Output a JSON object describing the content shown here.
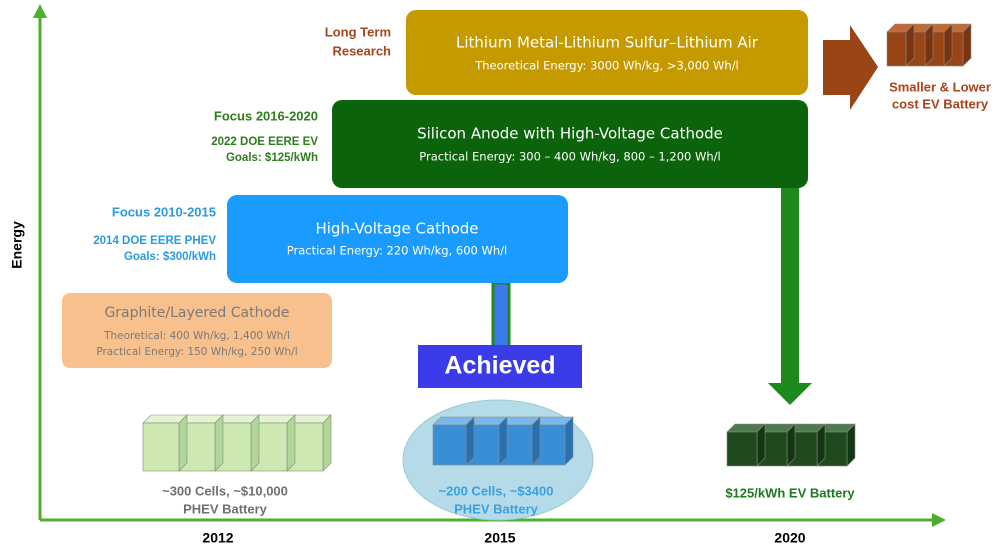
{
  "axis": {
    "y_label": "Energy",
    "x_labels": [
      "2012",
      "2015",
      "2020"
    ]
  },
  "boxes": [
    {
      "title": "Lithium Metal-Lithium Sulfur–Lithium Air",
      "lines": [
        "Theoretical Energy: 3000 Wh/kg, >3,000 Wh/l"
      ],
      "focus": [
        "Long Term",
        "Research"
      ]
    },
    {
      "title": "Silicon Anode with High-Voltage Cathode",
      "lines": [
        "Practical Energy: 300 – 400 Wh/kg, 800 – 1,200 Wh/l"
      ],
      "focus": [
        "Focus 2016-2020"
      ],
      "goals": [
        "2022 DOE EERE EV",
        "Goals: $125/kWh"
      ]
    },
    {
      "title": "High-Voltage Cathode",
      "lines": [
        "Practical Energy: 220 Wh/kg, 600 Wh/l"
      ],
      "focus": [
        "Focus 2010-2015"
      ],
      "goals": [
        "2014 DOE EERE PHEV",
        "Goals: $300/kWh"
      ]
    },
    {
      "title": "Graphite/Layered Cathode",
      "lines": [
        "Theoretical: 400 Wh/kg, 1,400 Wh/l",
        "Practical Energy: 150 Wh/kg, 250 Wh/l"
      ]
    }
  ],
  "badge": "Achieved",
  "batteries": [
    {
      "lines": [
        "~300 Cells, ~$10,000",
        "PHEV Battery"
      ]
    },
    {
      "lines": [
        "~200 Cells, ~$3400",
        "PHEV Battery"
      ]
    },
    {
      "lines": [
        "$125/kWh EV Battery"
      ]
    },
    {
      "lines": [
        "Smaller & Lower",
        "cost EV Battery"
      ]
    }
  ]
}
